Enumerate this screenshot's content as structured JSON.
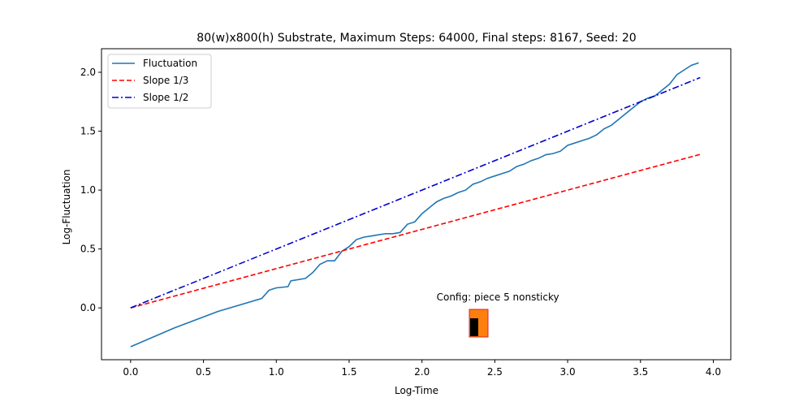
{
  "chart_data": {
    "type": "line",
    "title": "80(w)x800(h) Substrate, Maximum Steps: 64000, Final steps: 8167, Seed: 20",
    "xlabel": "Log-Time",
    "ylabel": "Log-Fluctuation",
    "xlim": [
      -0.2,
      4.12
    ],
    "ylim": [
      -0.44,
      2.2
    ],
    "xticks": [
      0.0,
      0.5,
      1.0,
      1.5,
      2.0,
      2.5,
      3.0,
      3.5,
      4.0
    ],
    "xtick_labels": [
      "0.0",
      "0.5",
      "1.0",
      "1.5",
      "2.0",
      "2.5",
      "3.0",
      "3.5",
      "4.0"
    ],
    "yticks": [
      0.0,
      0.5,
      1.0,
      1.5,
      2.0
    ],
    "ytick_labels": [
      "0.0",
      "0.5",
      "1.0",
      "1.5",
      "2.0"
    ],
    "legend_position": "top-left",
    "series": [
      {
        "name": "Fluctuation",
        "color": "#1f77b4",
        "style": "solid",
        "x": [
          0.0,
          0.3,
          0.6,
          0.9,
          0.95,
          1.0,
          1.08,
          1.1,
          1.2,
          1.25,
          1.3,
          1.35,
          1.4,
          1.45,
          1.5,
          1.55,
          1.6,
          1.65,
          1.7,
          1.75,
          1.8,
          1.85,
          1.9,
          1.95,
          2.0,
          2.05,
          2.1,
          2.15,
          2.2,
          2.25,
          2.3,
          2.35,
          2.4,
          2.45,
          2.5,
          2.55,
          2.6,
          2.65,
          2.7,
          2.75,
          2.8,
          2.85,
          2.9,
          2.95,
          3.0,
          3.05,
          3.1,
          3.15,
          3.2,
          3.25,
          3.3,
          3.35,
          3.4,
          3.45,
          3.5,
          3.55,
          3.6,
          3.65,
          3.7,
          3.75,
          3.8,
          3.85,
          3.9
        ],
        "y": [
          -0.33,
          -0.17,
          -0.03,
          0.08,
          0.15,
          0.17,
          0.18,
          0.23,
          0.25,
          0.3,
          0.37,
          0.4,
          0.4,
          0.48,
          0.52,
          0.58,
          0.6,
          0.61,
          0.62,
          0.63,
          0.63,
          0.64,
          0.71,
          0.73,
          0.8,
          0.85,
          0.9,
          0.93,
          0.95,
          0.98,
          1.0,
          1.05,
          1.07,
          1.1,
          1.12,
          1.14,
          1.16,
          1.2,
          1.22,
          1.25,
          1.27,
          1.3,
          1.31,
          1.33,
          1.38,
          1.4,
          1.42,
          1.44,
          1.47,
          1.52,
          1.55,
          1.6,
          1.65,
          1.7,
          1.75,
          1.78,
          1.8,
          1.85,
          1.9,
          1.98,
          2.02,
          2.06,
          2.08
        ]
      },
      {
        "name": "Slope 1/3",
        "color": "#ff0000",
        "style": "dashed",
        "x": [
          0.0,
          3.91
        ],
        "y": [
          0.0,
          1.303
        ]
      },
      {
        "name": "Slope 1/2",
        "color": "#0000cc",
        "style": "dashdot",
        "x": [
          0.0,
          3.91
        ],
        "y": [
          0.0,
          1.955
        ]
      }
    ],
    "annotation": {
      "text": "Config:  piece 5 nonsticky",
      "x": 2.2,
      "y": 0.05,
      "icon_color": "#ff7f0e",
      "icon_inner_color": "#000000"
    }
  }
}
